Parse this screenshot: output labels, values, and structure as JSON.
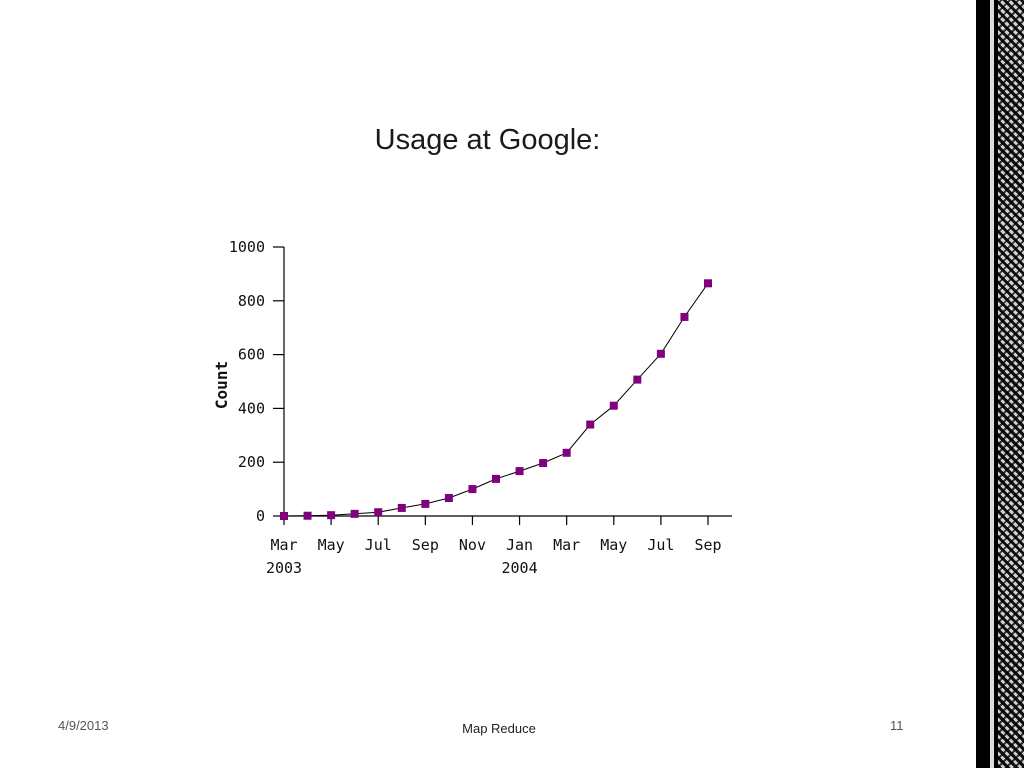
{
  "slide": {
    "title": "Usage at Google:",
    "footer_date": "4/9/2013",
    "footer_center": "Map Reduce",
    "page_number": "11"
  },
  "colors": {
    "marker": "#800080",
    "line": "#000000"
  },
  "chart_data": {
    "type": "line",
    "title": "",
    "xlabel": "",
    "ylabel": "Count",
    "ylim": [
      0,
      1000
    ],
    "yticks": [
      0,
      200,
      400,
      600,
      800,
      1000
    ],
    "xticks": [
      {
        "month_index": 0,
        "label": "Mar",
        "year": "2003"
      },
      {
        "month_index": 2,
        "label": "May"
      },
      {
        "month_index": 4,
        "label": "Jul"
      },
      {
        "month_index": 6,
        "label": "Sep"
      },
      {
        "month_index": 8,
        "label": "Nov"
      },
      {
        "month_index": 10,
        "label": "Jan",
        "year": "2004"
      },
      {
        "month_index": 12,
        "label": "Mar"
      },
      {
        "month_index": 14,
        "label": "May"
      },
      {
        "month_index": 16,
        "label": "Jul"
      },
      {
        "month_index": 18,
        "label": "Sep"
      }
    ],
    "x": [
      "2003-03",
      "2003-04",
      "2003-05",
      "2003-06",
      "2003-07",
      "2003-08",
      "2003-09",
      "2003-10",
      "2003-11",
      "2003-12",
      "2004-01",
      "2004-02",
      "2004-03",
      "2004-04",
      "2004-05",
      "2004-06",
      "2004-07",
      "2004-08",
      "2004-09"
    ],
    "values": [
      0,
      1,
      3,
      8,
      14,
      30,
      45,
      67,
      100,
      138,
      167,
      197,
      235,
      340,
      410,
      507,
      603,
      740,
      865
    ],
    "grid": false,
    "marker": "square"
  }
}
